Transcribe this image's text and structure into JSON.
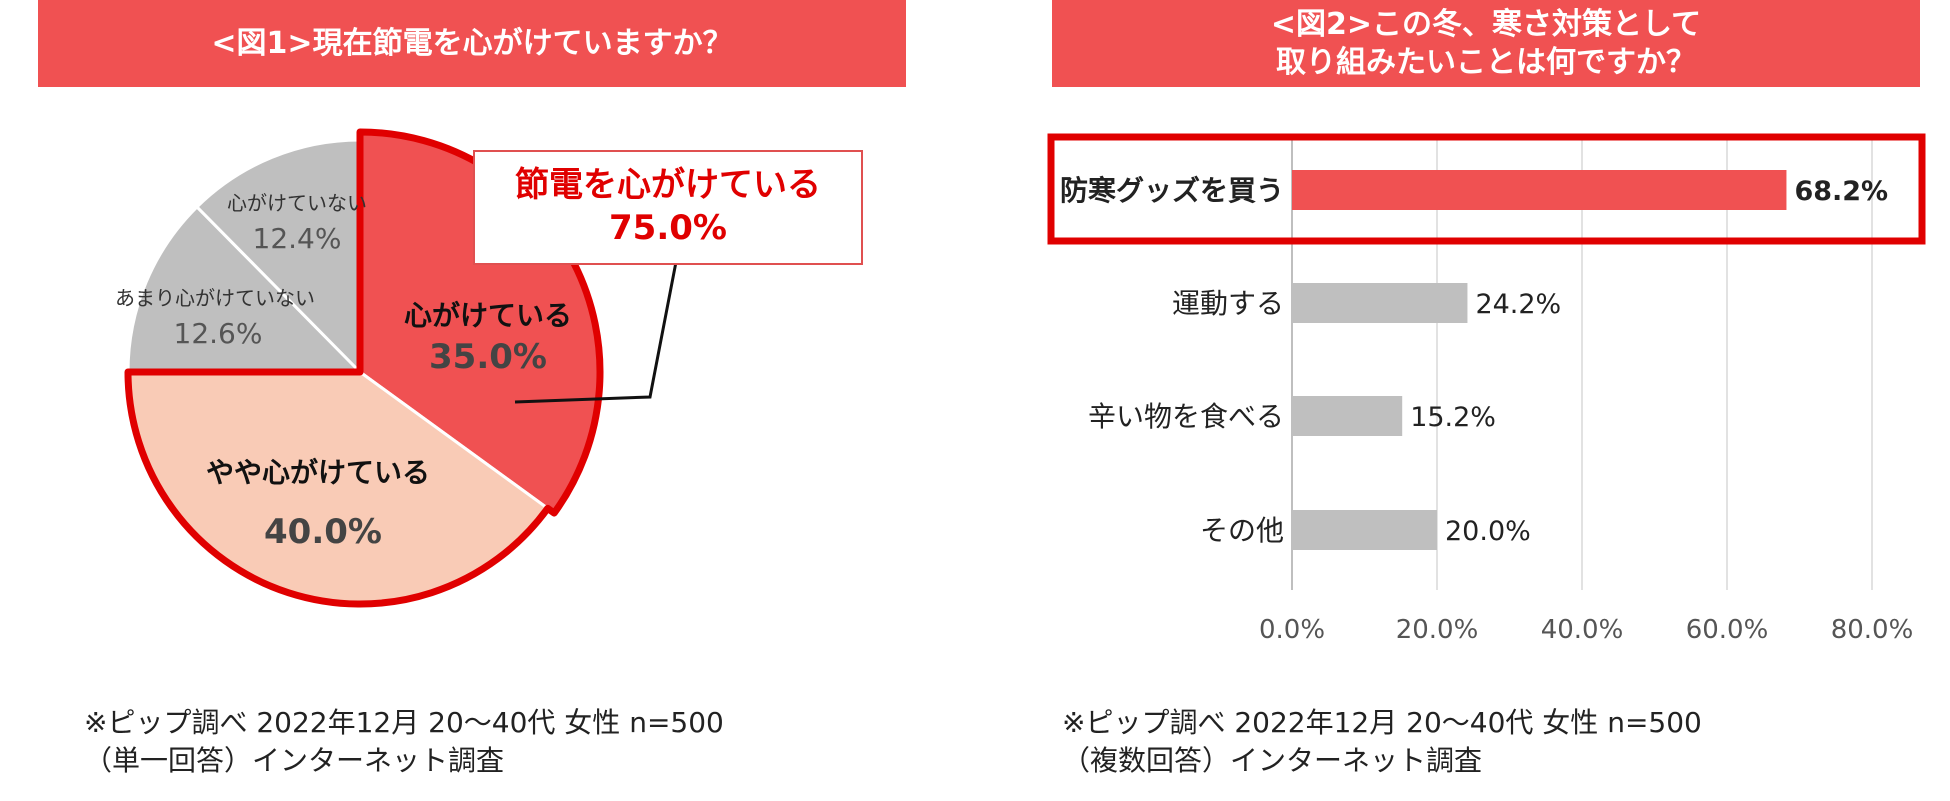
{
  "left": {
    "title": "<図1>現在節電を心がけていますか？",
    "callout": {
      "label": "節電を心がけている",
      "value": "75.0%"
    },
    "note": {
      "line1": "※ピップ調べ 2022年12月 20～40代 女性 n=500",
      "line2": "（単一回答）インターネット調査"
    }
  },
  "right": {
    "title_line1": "<図2>この冬、寒さ対策として",
    "title_line2": "取り組みたいことは何ですか？",
    "note": {
      "line1": "※ピップ調べ 2022年12月 20～40代 女性 n=500",
      "line2": "（複数回答）インターネット調査"
    }
  },
  "colors": {
    "banner": "#f05152",
    "accent": "#e00000",
    "bar_highlight": "#f05152",
    "bar": "#bfbfbf"
  },
  "chart_data": [
    {
      "type": "pie",
      "title": "<図1>現在節電を心がけていますか？",
      "slices": [
        {
          "label": "心がけている",
          "value": 35.0,
          "value_label": "35.0%",
          "color": "#f05152"
        },
        {
          "label": "やや心がけている",
          "value": 40.0,
          "value_label": "40.0%",
          "color": "#f9cbb6"
        },
        {
          "label": "あまり心がけていない",
          "value": 12.6,
          "value_label": "12.6%",
          "color": "#bfbfbf"
        },
        {
          "label": "心がけていない",
          "value": 12.4,
          "value_label": "12.4%",
          "color": "#bfbfbf"
        }
      ]
    },
    {
      "type": "bar",
      "orientation": "horizontal",
      "title": "<図2>この冬、寒さ対策として取り組みたいことは何ですか？",
      "categories": [
        "防寒グッズを買う",
        "運動する",
        "辛い物を食べる",
        "その他"
      ],
      "values": [
        68.2,
        24.2,
        15.2,
        20.0
      ],
      "value_labels": [
        "68.2%",
        "24.2%",
        "15.2%",
        "20.0%"
      ],
      "highlight_index": 0,
      "xlim": [
        0,
        80
      ],
      "xticks": [
        "0.0%",
        "20.0%",
        "40.0%",
        "60.0%",
        "80.0%"
      ],
      "grid": true
    }
  ]
}
